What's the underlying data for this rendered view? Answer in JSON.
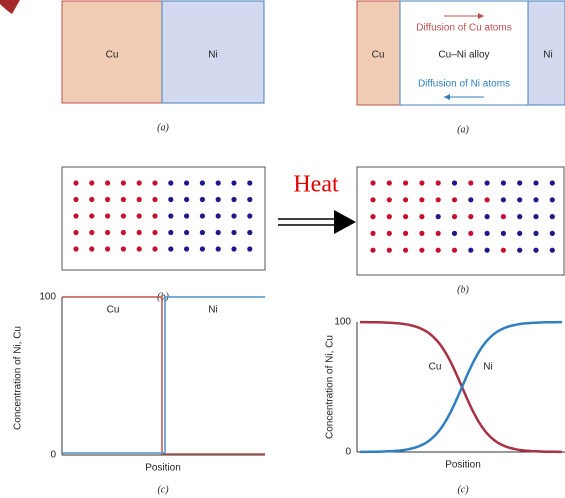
{
  "panel_a_left": {
    "left_label": "Cu",
    "right_label": "Ni",
    "caption": "(a)"
  },
  "panel_a_right": {
    "left_label": "Cu",
    "middle_label": "Cu–Ni alloy",
    "right_label": "Ni",
    "top_note": "Diffusion of Cu atoms",
    "bottom_note": "Diffusion of Ni atoms",
    "caption": "(a)"
  },
  "panel_b_left": {
    "caption": "(b)"
  },
  "heat_label": "Heat",
  "panel_b_right": {
    "caption": "(b)"
  },
  "panel_c_left": {
    "y_label": "Concentration of Ni, Cu",
    "y_top": 100,
    "y_bottom": 0,
    "x_label": "Position",
    "curve_labels": [
      "Cu",
      "Ni"
    ],
    "caption": "(c)"
  },
  "panel_c_right": {
    "y_label": "Concentration of Ni, Cu",
    "y_top": 100,
    "y_bottom": 0,
    "x_label": "Position",
    "curve_labels": [
      "Cu",
      "Ni"
    ],
    "caption": "(c)"
  }
}
